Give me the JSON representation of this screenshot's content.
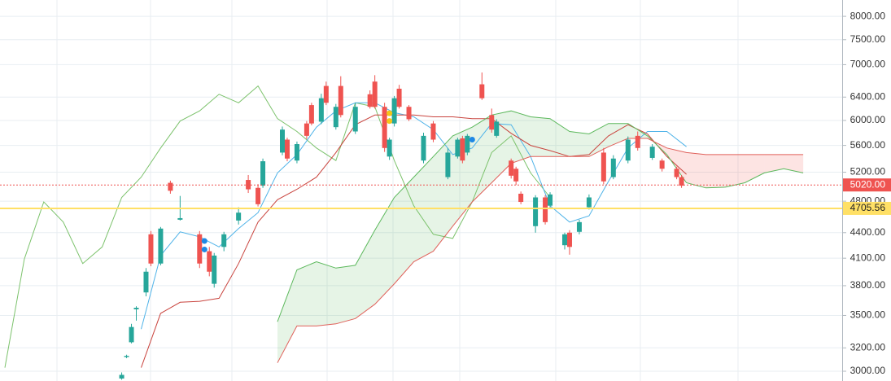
{
  "chart_data": {
    "type": "candlestick",
    "log_scale": true,
    "grid": true,
    "xlim": [
      -1,
      172
    ],
    "ylim": [
      2920,
      8370
    ],
    "yticks": [
      {
        "value": 3000,
        "label": "3000.00"
      },
      {
        "value": 3200,
        "label": "3200.00"
      },
      {
        "value": 3500,
        "label": "3500.00"
      },
      {
        "value": 3800,
        "label": "3800.00"
      },
      {
        "value": 4100,
        "label": "4100.00"
      },
      {
        "value": 4400,
        "label": "4400.00"
      },
      {
        "value": 4800,
        "label": "4800.00"
      },
      {
        "value": 5200,
        "label": "5200.00"
      },
      {
        "value": 5600,
        "label": "5600.00"
      },
      {
        "value": 6000,
        "label": "6000.00"
      },
      {
        "value": 6400,
        "label": "6400.00"
      },
      {
        "value": 7000,
        "label": "7000.00"
      },
      {
        "value": 7500,
        "label": "7500.00"
      },
      {
        "value": 8000,
        "label": "8000.00"
      }
    ],
    "up_color": "#26a69a",
    "down_color": "#ef5350",
    "candles": {
      "x": [
        24,
        25,
        26,
        27,
        29,
        30,
        32,
        34,
        36,
        40,
        42,
        43,
        45,
        48,
        50,
        52,
        53,
        57,
        58,
        60,
        62,
        63,
        65,
        66,
        68,
        69,
        72,
        75,
        76,
        78,
        79,
        80,
        81,
        83,
        86,
        88,
        91,
        93,
        94,
        95,
        98,
        100,
        101,
        104,
        105,
        106,
        109,
        111,
        112,
        115,
        116,
        118,
        120,
        123,
        125,
        128,
        130,
        133,
        135,
        138,
        139
      ],
      "open": [
        2940,
        3120,
        3250,
        3560,
        3730,
        4380,
        4040,
        5050,
        4560,
        4380,
        4180,
        3820,
        4230,
        4550,
        5090,
        4980,
        5010,
        5490,
        5690,
        5370,
        5950,
        6260,
        5980,
        6600,
        5890,
        6600,
        5820,
        6450,
        6680,
        6230,
        5430,
        5950,
        6550,
        6230,
        5370,
        5950,
        5130,
        5430,
        5710,
        5490,
        6630,
        6090,
        5750,
        5370,
        5250,
        4900,
        4480,
        4850,
        4740,
        4250,
        4400,
        4410,
        4720,
        5490,
        5130,
        5370,
        5750,
        5410,
        5370,
        5250,
        5130
      ],
      "high": [
        2990,
        3140,
        3420,
        3590,
        3990,
        4420,
        4470,
        5080,
        4870,
        4420,
        4230,
        4160,
        4410,
        4720,
        5160,
        5030,
        5400,
        5900,
        5720,
        5660,
        5990,
        6300,
        6460,
        6680,
        6280,
        6780,
        6300,
        6520,
        6800,
        6300,
        5720,
        6420,
        6620,
        6260,
        5800,
        5990,
        5560,
        5720,
        5750,
        5780,
        6850,
        6200,
        6020,
        5400,
        5280,
        4930,
        4880,
        4880,
        4920,
        4400,
        4430,
        4560,
        4890,
        5560,
        5450,
        5740,
        5820,
        5620,
        5400,
        5280,
        5160
      ],
      "low": [
        2930,
        3110,
        3240,
        3450,
        3690,
        4010,
        4020,
        4900,
        4550,
        3990,
        3900,
        3780,
        4180,
        4500,
        4910,
        4730,
        4980,
        5450,
        5360,
        5330,
        5700,
        5920,
        5940,
        6260,
        5850,
        6050,
        5780,
        6200,
        6200,
        5500,
        5380,
        5900,
        6200,
        5990,
        5330,
        5650,
        5100,
        5400,
        5330,
        5450,
        6350,
        5800,
        5720,
        5110,
        5020,
        4760,
        4400,
        4500,
        4700,
        4200,
        4140,
        4380,
        4690,
        5030,
        5100,
        5330,
        5520,
        5380,
        5210,
        5100,
        4980
      ],
      "close": [
        2970,
        3130,
        3390,
        3575,
        3950,
        4040,
        4450,
        4940,
        4580,
        4040,
        3950,
        4130,
        4380,
        4650,
        4960,
        4760,
        5360,
        5850,
        5400,
        5620,
        5750,
        5950,
        6380,
        6300,
        6230,
        6090,
        6230,
        6230,
        6230,
        5560,
        5690,
        6380,
        6230,
        6020,
        5750,
        5690,
        5490,
        5690,
        5370,
        5750,
        6380,
        5850,
        5980,
        5150,
        5070,
        4790,
        4850,
        4530,
        4890,
        4380,
        4230,
        4530,
        4850,
        5070,
        5400,
        5690,
        5560,
        5580,
        5250,
        5130,
        5010
      ]
    },
    "x": [
      0,
      4,
      8,
      12,
      16,
      20,
      24,
      28,
      32,
      36,
      40,
      44,
      48,
      52,
      56,
      60,
      64,
      68,
      72,
      76,
      80,
      84,
      88,
      92,
      96,
      100,
      104,
      108,
      112,
      116,
      120,
      124,
      128,
      132,
      136,
      140,
      144,
      148,
      152,
      156,
      160,
      164
    ],
    "series": [
      {
        "color": "#7cc26c",
        "values": [
          3030,
          4090,
          4790,
          4530,
          4040,
          4230,
          4850,
          5130,
          5560,
          5990,
          6160,
          6450,
          6300,
          6600,
          6030,
          5820,
          5560,
          5370,
          6300,
          6230,
          5370,
          4740,
          4380,
          4330,
          4790,
          5490,
          5750,
          5190,
          4850,
          null,
          null,
          null,
          null,
          null,
          null,
          null,
          null,
          null,
          null,
          null,
          null,
          null
        ]
      },
      {
        "color": "#4fb3e8",
        "values": [
          null,
          null,
          null,
          null,
          null,
          null,
          null,
          3370,
          4130,
          4410,
          4350,
          4230,
          4450,
          4650,
          5190,
          5460,
          5890,
          6160,
          6300,
          6300,
          6130,
          6060,
          5850,
          5460,
          5560,
          5950,
          5930,
          5430,
          4740,
          4530,
          4610,
          5070,
          5560,
          5820,
          5820,
          5580,
          null,
          null,
          null,
          null,
          null,
          null
        ]
      },
      {
        "color": "#c9443e",
        "values": [
          null,
          null,
          null,
          null,
          null,
          null,
          null,
          3030,
          3520,
          3630,
          3640,
          3670,
          4040,
          4530,
          4820,
          4960,
          5130,
          5490,
          5930,
          6090,
          6090,
          6090,
          6060,
          6060,
          6030,
          6030,
          5790,
          5600,
          5520,
          5430,
          5460,
          5750,
          5930,
          5780,
          5430,
          5170,
          null,
          null,
          null,
          null,
          null,
          null
        ]
      },
      {
        "color": "#5cb85c",
        "role": "span_a",
        "values": [
          null,
          null,
          null,
          null,
          null,
          null,
          null,
          null,
          null,
          null,
          null,
          null,
          null,
          null,
          3440,
          3970,
          4060,
          3990,
          4020,
          4430,
          4850,
          5130,
          5430,
          5750,
          5890,
          6090,
          6160,
          6060,
          6030,
          5820,
          5780,
          5950,
          5950,
          5750,
          5460,
          5050,
          4980,
          4990,
          5050,
          5190,
          5250,
          5190
        ]
      },
      {
        "color": "#e0605a",
        "role": "span_b",
        "values": [
          null,
          null,
          null,
          null,
          null,
          null,
          null,
          null,
          null,
          null,
          null,
          null,
          null,
          null,
          3070,
          3400,
          3400,
          3420,
          3470,
          3610,
          3820,
          4060,
          4180,
          4480,
          4790,
          5050,
          5330,
          5430,
          5430,
          5430,
          5430,
          5580,
          5710,
          5710,
          5560,
          5490,
          5460,
          5460,
          5460,
          5460,
          5460,
          5460
        ]
      }
    ],
    "cloud": {
      "up_color": "rgba(76,175,80,0.14)",
      "down_color": "rgba(244,67,54,0.14)"
    },
    "markers": [
      {
        "x": 41,
        "value": 4300,
        "color": "#1e88e5"
      },
      {
        "x": 41,
        "value": 4200,
        "color": "#1e88e5"
      },
      {
        "x": 96,
        "value": 5690,
        "color": "#1e88e5"
      },
      {
        "x": 79,
        "value": 6120,
        "color": "#f5c518"
      },
      {
        "x": 79,
        "value": 5990,
        "color": "#f5c518"
      }
    ],
    "price_lines": [
      {
        "value": 5020,
        "label": "5020.00",
        "color": "#ef5350",
        "text_color": "#ffffff",
        "style": "dotted"
      },
      {
        "value": 4705.56,
        "label": "4705.56",
        "color": "#ffe066",
        "text_color": "#222222",
        "style": "solid"
      }
    ]
  }
}
